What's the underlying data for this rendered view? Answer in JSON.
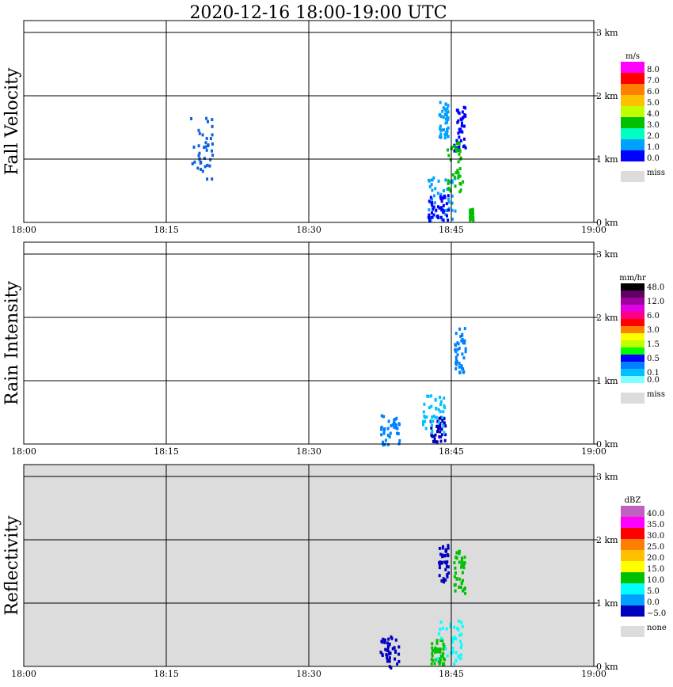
{
  "title": "2020-12-16   18:00-19:00 UTC",
  "x_ticks": [
    "18:00",
    "18:15",
    "18:30",
    "18:45",
    "19:00"
  ],
  "height_ticks": [
    "0 km",
    "1 km",
    "2 km",
    "3 km"
  ],
  "chart_data": [
    {
      "type": "heatmap",
      "title": "Fall Velocity",
      "xlim": [
        "18:00",
        "19:00"
      ],
      "ylim_km": [
        0,
        3.2
      ],
      "colorbar": {
        "unit": "m/s",
        "labels": [
          "8.0",
          "7.0",
          "6.0",
          "5.0",
          "4.0",
          "3.0",
          "2.0",
          "1.0",
          "0.0"
        ],
        "colors": [
          "#ff00ff",
          "#ff0000",
          "#ff8000",
          "#ffc000",
          "#c0ff00",
          "#00c000",
          "#00ffc0",
          "#00a0ff",
          "#0000ff"
        ],
        "missing_label": "miss",
        "missing_color": "#dcdcdc"
      },
      "background": "#ffffff",
      "blobs": [
        {
          "t": 18.7,
          "h": 1.2,
          "w": 1.2,
          "hh": 0.55,
          "color": "#1060e0"
        },
        {
          "t": 43.9,
          "h": 0.4,
          "w": 1.4,
          "hh": 0.35,
          "color": "#00a0ff"
        },
        {
          "t": 43.5,
          "h": 0.25,
          "w": 1.1,
          "hh": 0.2,
          "color": "#0000ff"
        },
        {
          "t": 45.8,
          "h": 1.5,
          "w": 0.6,
          "hh": 0.35,
          "color": "#0000ff"
        },
        {
          "t": 44.1,
          "h": 1.65,
          "w": 0.5,
          "hh": 0.3,
          "color": "#00a0ff"
        },
        {
          "t": 45.3,
          "h": 0.9,
          "w": 0.8,
          "hh": 0.4,
          "color": "#00c000"
        },
        {
          "t": 47.0,
          "h": 0.15,
          "w": 0.2,
          "hh": 0.1,
          "color": "#00c000"
        }
      ]
    },
    {
      "type": "heatmap",
      "title": "Rain Intensity",
      "xlim": [
        "18:00",
        "19:00"
      ],
      "ylim_km": [
        0,
        3.2
      ],
      "colorbar": {
        "unit": "mm/hr",
        "labels": [
          "48.0",
          "",
          "12.0",
          "",
          "6.0",
          "",
          "3.0",
          "",
          "1.5",
          "",
          "0.5",
          "",
          "0.1",
          "0.0"
        ],
        "colors": [
          "#000000",
          "#600060",
          "#a000a0",
          "#e000e0",
          "#ff0080",
          "#ff0000",
          "#ff8000",
          "#ffff00",
          "#c0ff00",
          "#00ff00",
          "#0000ff",
          "#0080ff",
          "#00c0ff",
          "#80ffff"
        ],
        "missing_label": "miss",
        "missing_color": "#dcdcdc"
      },
      "background": "#ffffff",
      "blobs": [
        {
          "t": 43.5,
          "h": 0.25,
          "w": 0.8,
          "hh": 0.2,
          "color": "#0000c0"
        },
        {
          "t": 45.8,
          "h": 1.5,
          "w": 0.6,
          "hh": 0.35,
          "color": "#0080ff"
        },
        {
          "t": 43.1,
          "h": 0.5,
          "w": 1.2,
          "hh": 0.3,
          "color": "#00c0ff"
        },
        {
          "t": 38.5,
          "h": 0.25,
          "w": 1.0,
          "hh": 0.25,
          "color": "#0080ff"
        }
      ]
    },
    {
      "type": "heatmap",
      "title": "Reflectivity",
      "xlim": [
        "18:00",
        "19:00"
      ],
      "ylim_km": [
        0,
        3.2
      ],
      "colorbar": {
        "unit": "dBZ",
        "labels": [
          "40.0",
          "35.0",
          "30.0",
          "25.0",
          "20.0",
          "15.0",
          "10.0",
          "5.0",
          "0.0",
          "−5.0"
        ],
        "colors": [
          "#c060c0",
          "#ff00ff",
          "#ff0000",
          "#ff8000",
          "#ffc000",
          "#ffff00",
          "#00c000",
          "#00ffff",
          "#00a0ff",
          "#0000c0"
        ],
        "missing_label": "none",
        "missing_color": "#dcdcdc"
      },
      "background": "#dcdcdc",
      "blobs": [
        {
          "t": 43.5,
          "h": 0.25,
          "w": 0.7,
          "hh": 0.2,
          "color": "#00c000"
        },
        {
          "t": 45.8,
          "h": 1.5,
          "w": 0.6,
          "hh": 0.35,
          "color": "#00c000"
        },
        {
          "t": 44.1,
          "h": 1.65,
          "w": 0.5,
          "hh": 0.3,
          "color": "#0000c0"
        },
        {
          "t": 38.4,
          "h": 0.25,
          "w": 1.0,
          "hh": 0.25,
          "color": "#0000c0"
        },
        {
          "t": 44.8,
          "h": 0.4,
          "w": 1.4,
          "hh": 0.35,
          "color": "#00ffff"
        }
      ]
    }
  ]
}
